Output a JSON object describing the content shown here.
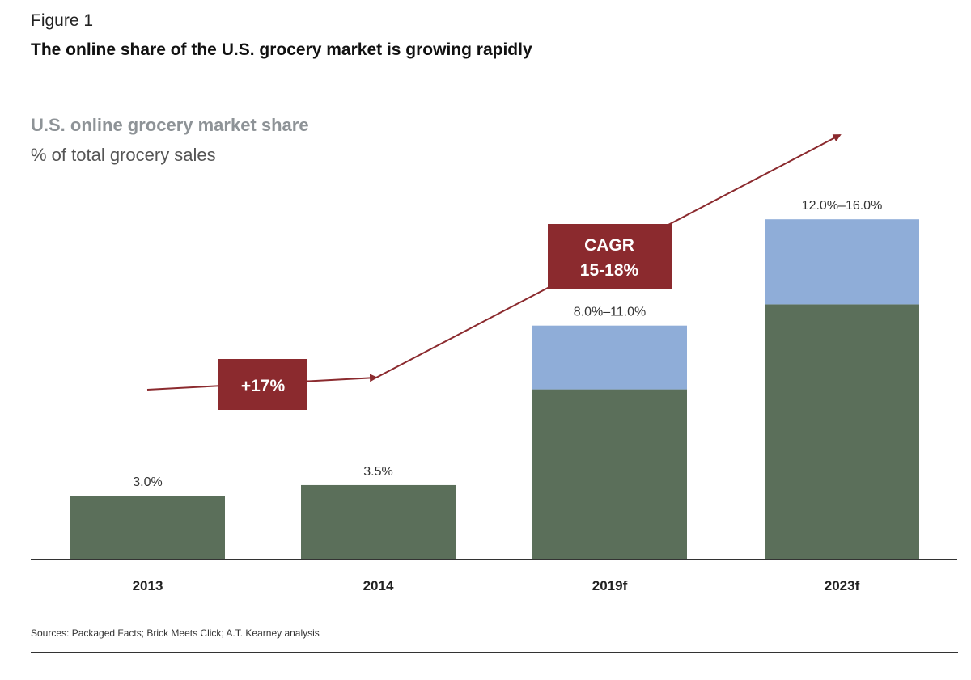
{
  "figure_label": "Figure 1",
  "title": "The online share of the U.S. grocery market is growing rapidly",
  "sources": "Sources: Packaged Facts; Brick Meets Click; A.T. Kearney analysis",
  "colors": {
    "base": "#5b6f5a",
    "range": "#8fadd8",
    "accent": "#8b2a2e"
  },
  "annotations": {
    "growth_2013_2014": "+17%",
    "cagr_line1": "CAGR",
    "cagr_line2": "15-18%"
  },
  "chart_data": {
    "type": "bar",
    "stacked": true,
    "title": "U.S. online grocery market share",
    "ylabel": "% of total grocery sales",
    "categories": [
      "2013",
      "2014",
      "2019f",
      "2023f"
    ],
    "series": [
      {
        "values": [
          3.0,
          3.5,
          8.0,
          12.0
        ],
        "color": "#5b6f5a"
      },
      {
        "values": [
          0,
          0,
          3.0,
          4.0
        ],
        "color": "#8fadd8"
      }
    ],
    "data_labels": [
      "3.0%",
      "3.5%",
      "8.0%–11.0%",
      "12.0%–16.0%"
    ],
    "ylim": [
      0,
      16
    ],
    "grid": false
  }
}
